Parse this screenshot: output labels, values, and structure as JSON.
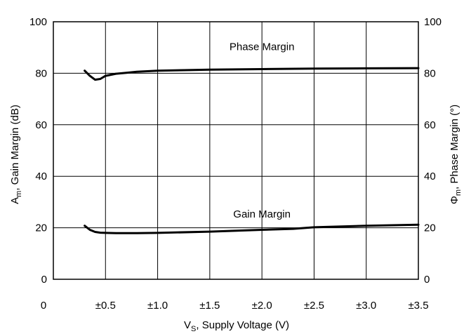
{
  "chart_data": {
    "type": "line",
    "xlabel": "V",
    "xlabel_sub": "S",
    "xlabel_rest": ", Supply Voltage (V)",
    "ylabel": "A",
    "ylabel_sub": "m",
    "ylabel_rest": ", Gain Margin (dB)",
    "y2label": "Φ",
    "y2label_sub": "m",
    "y2label_rest": ", Phase Margin (°)",
    "xlim": [
      0,
      3.5
    ],
    "ylim": [
      0,
      100
    ],
    "y2lim": [
      0,
      100
    ],
    "grid": true,
    "x_ticks": [
      {
        "value": 0.0,
        "label": "0"
      },
      {
        "value": 0.5,
        "label": "±0.5"
      },
      {
        "value": 1.0,
        "label": "±1.0"
      },
      {
        "value": 1.5,
        "label": "±1.5"
      },
      {
        "value": 2.0,
        "label": "±2.0"
      },
      {
        "value": 2.5,
        "label": "±2.5"
      },
      {
        "value": 3.0,
        "label": "±3.0"
      },
      {
        "value": 3.5,
        "label": "±3.5"
      }
    ],
    "y_ticks": [
      {
        "value": 0,
        "label": "0"
      },
      {
        "value": 20,
        "label": "20"
      },
      {
        "value": 40,
        "label": "40"
      },
      {
        "value": 60,
        "label": "60"
      },
      {
        "value": 80,
        "label": "80"
      },
      {
        "value": 100,
        "label": "100"
      }
    ],
    "y2_ticks": [
      {
        "value": 0,
        "label": "0"
      },
      {
        "value": 20,
        "label": "20"
      },
      {
        "value": 40,
        "label": "40"
      },
      {
        "value": 60,
        "label": "60"
      },
      {
        "value": 80,
        "label": "80"
      },
      {
        "value": 100,
        "label": "100"
      }
    ],
    "series": [
      {
        "name": "Phase Margin",
        "label_x": 2.0,
        "label_y": 89,
        "x": [
          0.3,
          0.35,
          0.4,
          0.45,
          0.5,
          0.6,
          0.7,
          0.8,
          1.0,
          1.25,
          1.5,
          2.0,
          2.5,
          3.0,
          3.5
        ],
        "y": [
          81.0,
          79.0,
          77.5,
          77.8,
          79.0,
          79.8,
          80.2,
          80.6,
          81.0,
          81.2,
          81.4,
          81.6,
          81.8,
          81.9,
          82.0
        ]
      },
      {
        "name": "Gain Margin",
        "label_x": 2.0,
        "label_y": 24,
        "x": [
          0.3,
          0.35,
          0.4,
          0.45,
          0.5,
          0.6,
          0.8,
          1.0,
          1.5,
          2.0,
          2.3,
          2.5,
          3.0,
          3.5
        ],
        "y": [
          20.8,
          19.2,
          18.4,
          18.1,
          18.0,
          17.9,
          17.9,
          18.0,
          18.5,
          19.2,
          19.6,
          20.2,
          20.8,
          21.2
        ]
      }
    ]
  }
}
